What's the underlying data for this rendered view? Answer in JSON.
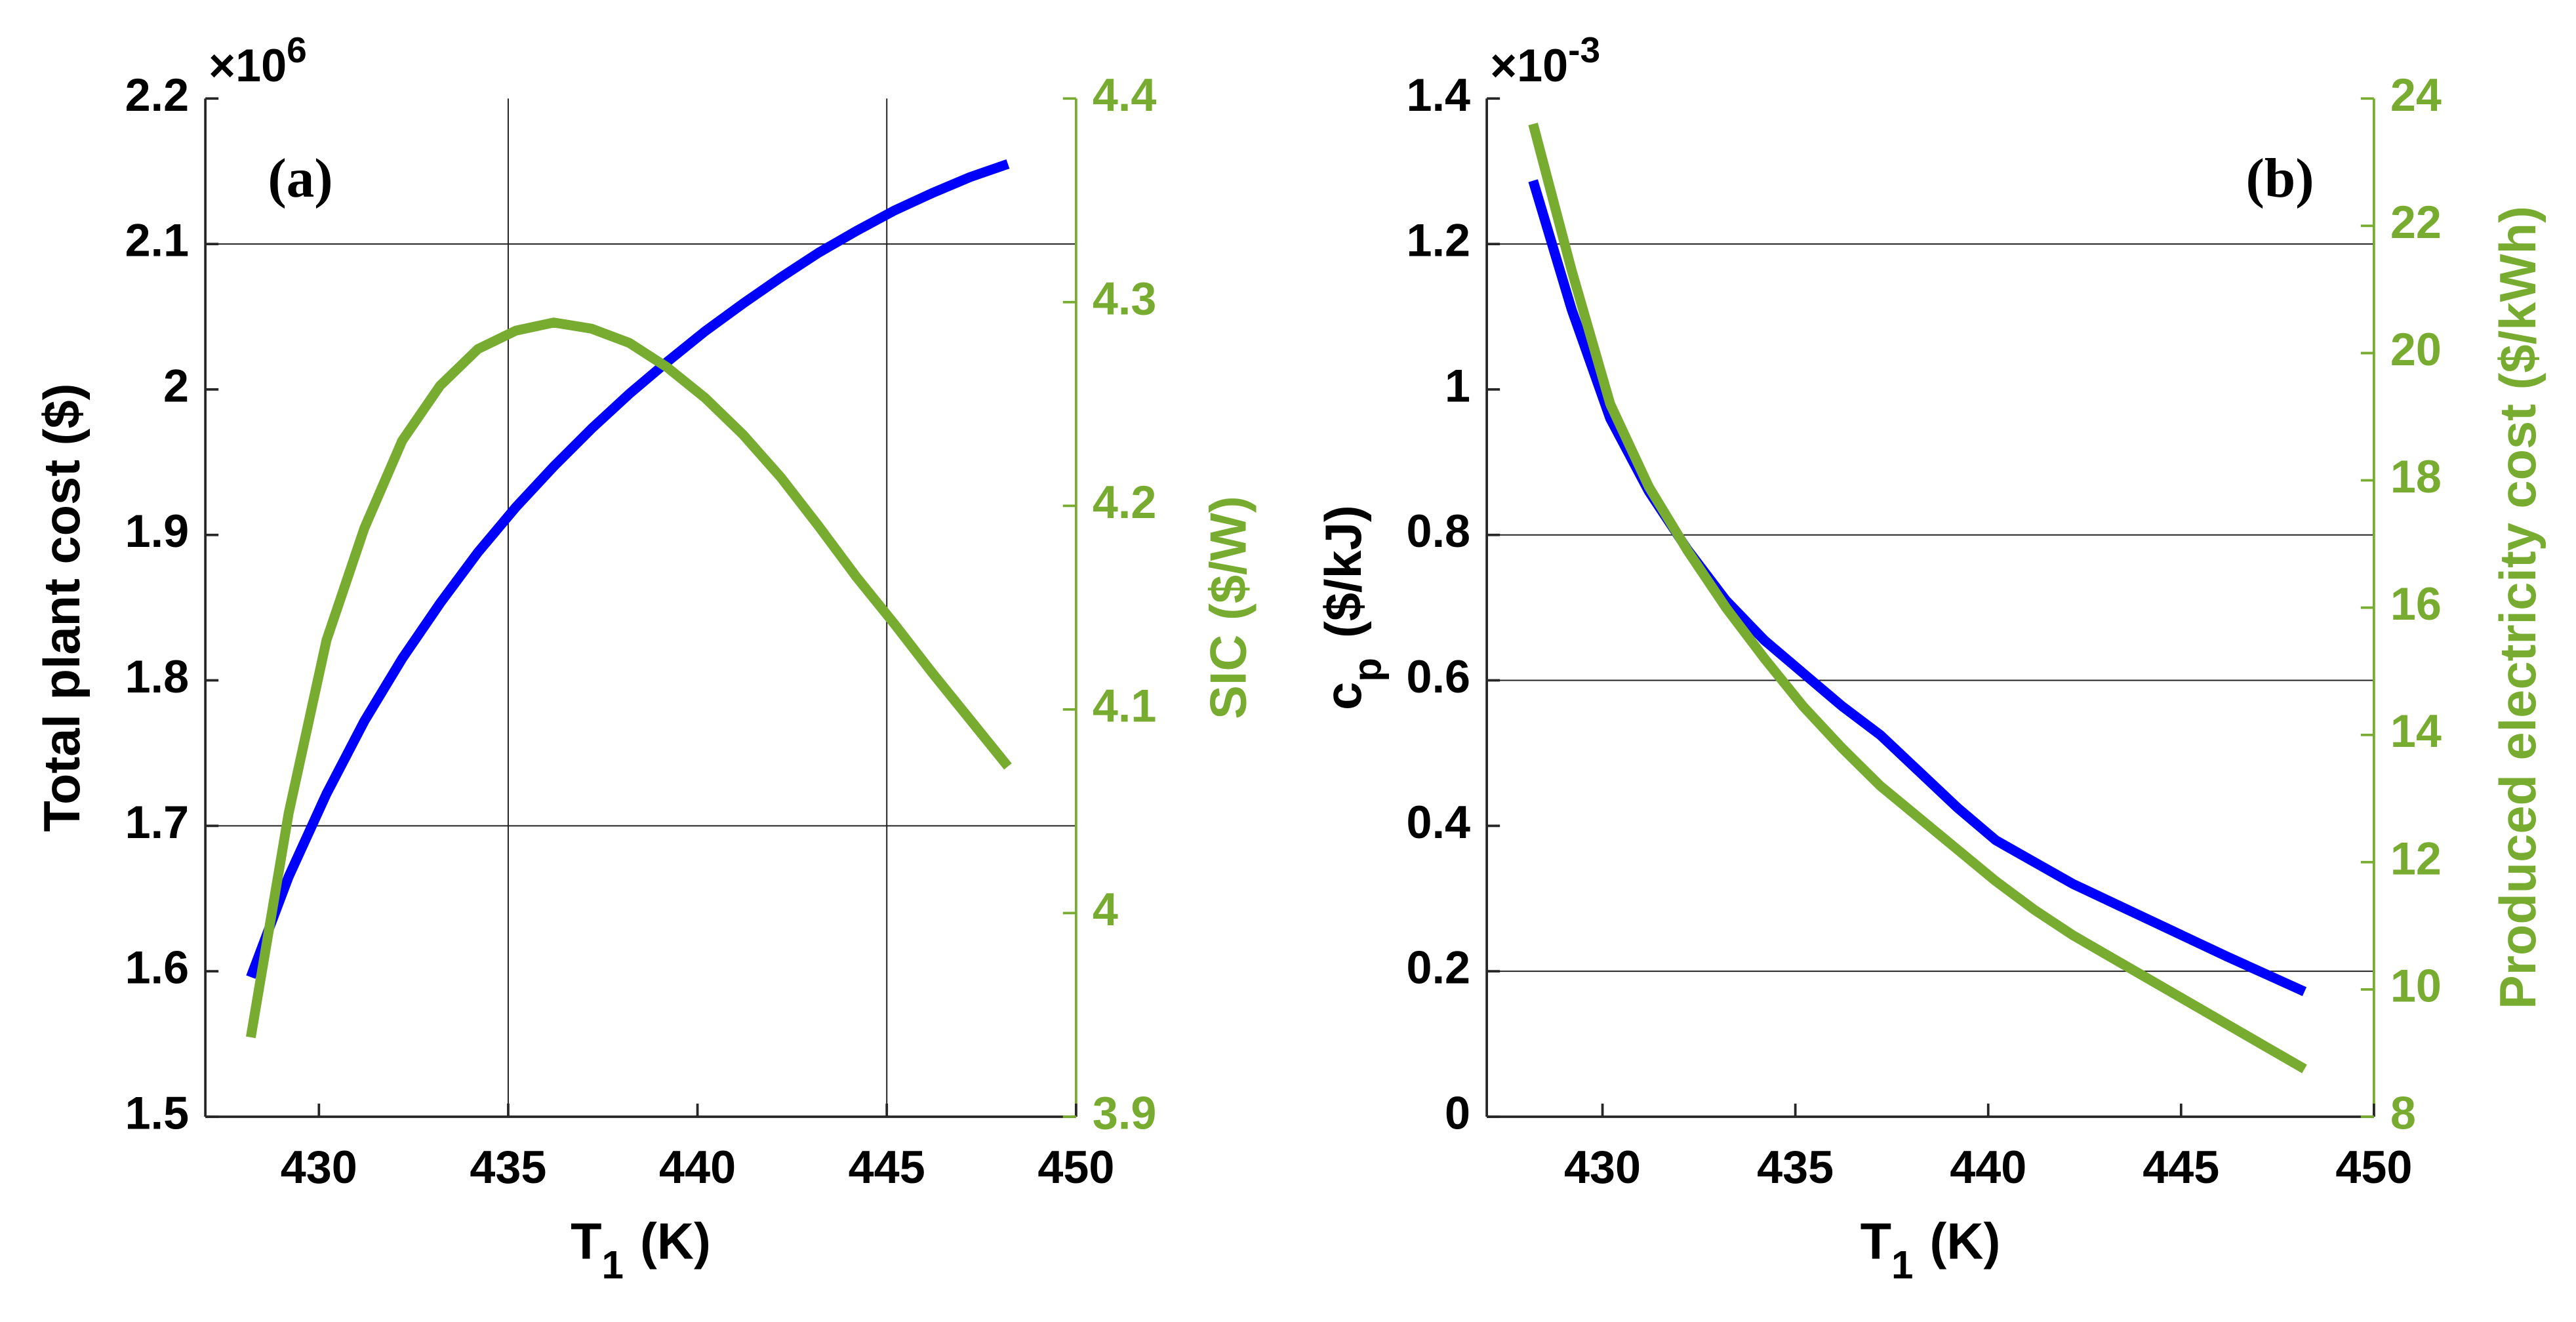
{
  "chart_data": [
    {
      "type": "line",
      "panel_label": "(a)",
      "xlabel": "T",
      "xlabel_sub": "1",
      "xlabel_unit": "(K)",
      "ylabel": "Total plant cost ($)",
      "y2label": "SIC ($/W)",
      "y_scale_base": "×10",
      "y_scale_exp": "6",
      "xlim": [
        427,
        450
      ],
      "xticks": [
        430,
        435,
        440,
        445,
        450
      ],
      "ylim": [
        1.5,
        2.2
      ],
      "yticks": [
        1.5,
        1.6,
        1.7,
        1.8,
        1.9,
        2,
        2.1,
        2.2
      ],
      "y2lim": [
        3.9,
        4.4
      ],
      "y2ticks": [
        3.9,
        4,
        4.1,
        4.2,
        4.3,
        4.4
      ],
      "y2color": "#77ac30",
      "xgrid": [
        435,
        445
      ],
      "ygrid": [
        1.7,
        2.1
      ],
      "x": [
        428.2,
        429.2,
        430.2,
        431.2,
        432.2,
        433.2,
        434.2,
        435.2,
        436.2,
        437.2,
        438.2,
        439.2,
        440.2,
        441.2,
        442.2,
        443.2,
        444.2,
        445.2,
        446.2,
        447.2,
        448.2
      ],
      "series": [
        {
          "color": "#0000ff",
          "axis": "y",
          "values": [
            1.596,
            1.665,
            1.722,
            1.772,
            1.815,
            1.853,
            1.888,
            1.919,
            1.947,
            1.973,
            1.997,
            2.019,
            2.04,
            2.059,
            2.077,
            2.094,
            2.109,
            2.123,
            2.135,
            2.146,
            2.155
          ]
        },
        {
          "color": "#77ac30",
          "axis": "y2",
          "values": [
            3.939,
            4.049,
            4.134,
            4.189,
            4.232,
            4.259,
            4.277,
            4.286,
            4.29,
            4.287,
            4.28,
            4.268,
            4.253,
            4.235,
            4.214,
            4.19,
            4.165,
            4.142,
            4.118,
            4.095,
            4.072
          ]
        }
      ]
    },
    {
      "type": "line",
      "panel_label": "(b)",
      "xlabel": "T",
      "xlabel_sub": "1",
      "xlabel_unit": "(K)",
      "ylabel": "c",
      "ylabel_sub": "p",
      "ylabel_unit": "($/kJ)",
      "y2label": "Produced electricity cost ($/kWh)",
      "y_scale_base": "×10",
      "y_scale_exp": "-3",
      "xlim": [
        427,
        450
      ],
      "xticks": [
        430,
        435,
        440,
        445,
        450
      ],
      "ylim": [
        0,
        1.4
      ],
      "yticks": [
        0,
        0.2,
        0.4,
        0.6,
        0.8,
        1,
        1.2,
        1.4
      ],
      "y2lim": [
        8,
        24
      ],
      "y2ticks": [
        8,
        10,
        12,
        14,
        16,
        18,
        20,
        22,
        24
      ],
      "y2color": "#77ac30",
      "xgrid": [],
      "ygrid": [
        0.2,
        0.6,
        0.8,
        1.2
      ],
      "x": [
        428.2,
        429.2,
        430.2,
        431.2,
        432.2,
        433.2,
        434.2,
        435.2,
        436.2,
        437.2,
        438.2,
        439.2,
        440.2,
        441.2,
        442.2,
        443.2,
        444.2,
        445.2,
        446.2,
        447.2,
        448.2
      ],
      "series": [
        {
          "color": "#0000ff",
          "axis": "y",
          "values": [
            1.287,
            1.11,
            0.96,
            0.86,
            0.78,
            0.71,
            0.655,
            0.61,
            0.565,
            0.525,
            0.475,
            0.425,
            0.38,
            0.35,
            0.32,
            0.295,
            0.27,
            0.245,
            0.22,
            0.196,
            0.172
          ]
        },
        {
          "color": "#77ac30",
          "axis": "y2",
          "values": [
            23.6,
            21.3,
            19.2,
            17.9,
            16.9,
            16.0,
            15.2,
            14.45,
            13.8,
            13.2,
            12.7,
            12.2,
            11.7,
            11.25,
            10.85,
            10.5,
            10.15,
            9.8,
            9.45,
            9.1,
            8.75
          ]
        }
      ]
    }
  ]
}
